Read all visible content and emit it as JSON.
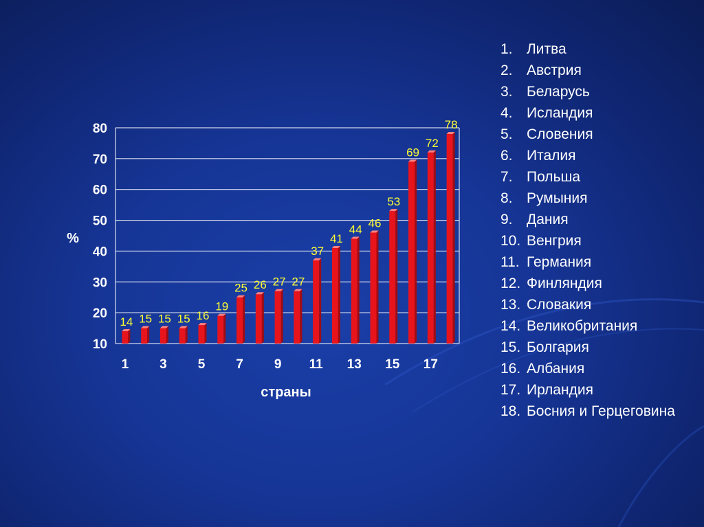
{
  "chart_data": {
    "type": "bar",
    "categories": [
      "1",
      "2",
      "3",
      "4",
      "5",
      "6",
      "7",
      "8",
      "9",
      "10",
      "11",
      "12",
      "13",
      "14",
      "15",
      "16",
      "17",
      "18"
    ],
    "x_tick_labels": [
      "1",
      "3",
      "5",
      "7",
      "9",
      "11",
      "13",
      "15",
      "17"
    ],
    "values": [
      14,
      15,
      15,
      15,
      16,
      19,
      25,
      26,
      27,
      27,
      37,
      41,
      44,
      46,
      53,
      69,
      72,
      78
    ],
    "ylim": [
      10,
      80
    ],
    "y_ticks": [
      10,
      20,
      30,
      40,
      50,
      60,
      70,
      80
    ],
    "ylabel": "%",
    "xlabel": "страны",
    "grid": true,
    "bar_color": "#e8141c",
    "label_color": "#ffff33",
    "legend_position": "right"
  },
  "legend": [
    {
      "num": "1.",
      "name": "Литва"
    },
    {
      "num": "2.",
      "name": "Австрия"
    },
    {
      "num": "3.",
      "name": "Беларусь"
    },
    {
      "num": "4.",
      "name": "Исландия"
    },
    {
      "num": "5.",
      "name": "Словения"
    },
    {
      "num": "6.",
      "name": "Италия"
    },
    {
      "num": "7.",
      "name": "Польша"
    },
    {
      "num": "8.",
      "name": "Румыния"
    },
    {
      "num": "9.",
      "name": "Дания"
    },
    {
      "num": "10.",
      "name": "Венгрия"
    },
    {
      "num": "11.",
      "name": "Германия"
    },
    {
      "num": "12.",
      "name": "Финляндия"
    },
    {
      "num": "13.",
      "name": "Словакия"
    },
    {
      "num": "14.",
      "name": "Великобритания"
    },
    {
      "num": "15.",
      "name": "Болгария"
    },
    {
      "num": "16.",
      "name": "Албания"
    },
    {
      "num": "17.",
      "name": "Ирландия"
    },
    {
      "num": "18.",
      "name": "Босния и Герцеговина"
    }
  ]
}
